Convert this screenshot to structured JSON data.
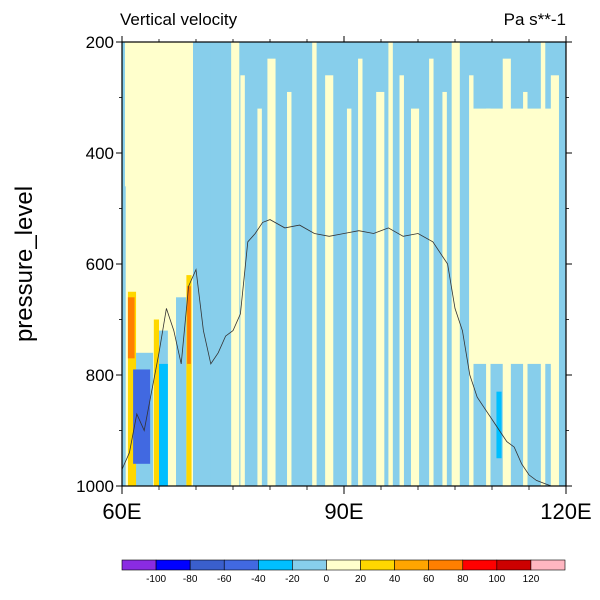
{
  "chart_data": {
    "type": "heatmap",
    "title": "Vertical velocity",
    "units": "Pa s**-1",
    "ylabel": "pressure_level",
    "xlabel": "",
    "xlim": [
      60,
      120
    ],
    "ylim": [
      1000,
      200
    ],
    "x_ticks": [
      {
        "value": 60,
        "label": "60E"
      },
      {
        "value": 90,
        "label": "90E"
      },
      {
        "value": 120,
        "label": "120E"
      }
    ],
    "y_ticks": [
      {
        "value": 200,
        "label": "200"
      },
      {
        "value": 400,
        "label": "400"
      },
      {
        "value": 600,
        "label": "600"
      },
      {
        "value": 800,
        "label": "800"
      },
      {
        "value": 1000,
        "label": "1000"
      }
    ],
    "background_level": {
      "min": -20,
      "max": 0,
      "color": "#87ceeb"
    },
    "regions": [
      {
        "name": "west-positive-zone",
        "lon": [
          60.4,
          69.6
        ],
        "p": [
          200,
          1000
        ],
        "level": "0 to 20",
        "color": "#ffffcc"
      },
      {
        "name": "west-negative-strip-a",
        "lon": [
          60.2,
          60.5
        ],
        "p": [
          460,
          1000
        ],
        "level": "-20 to 0",
        "color": "#87ceeb"
      },
      {
        "name": "west-negative-strip-b",
        "lon": [
          61.4,
          64.2
        ],
        "p": [
          760,
          1000
        ],
        "level": "-20 to 0",
        "color": "#87ceeb"
      },
      {
        "name": "west-negative-strip-c",
        "lon": [
          64.8,
          66.2
        ],
        "p": [
          720,
          1000
        ],
        "level": "-20 to 0",
        "color": "#87ceeb"
      },
      {
        "name": "west-negative-strip-d",
        "lon": [
          67.3,
          68.7
        ],
        "p": [
          660,
          1000
        ],
        "level": "-20 to 0",
        "color": "#87ceeb"
      },
      {
        "name": "west-negative-strip-e",
        "lon": [
          69.6,
          72.0
        ],
        "p": [
          200,
          1000
        ],
        "level": "-20 to 0",
        "color": "#87ceeb"
      },
      {
        "name": "orange-core-a",
        "lon": [
          60.8,
          61.9
        ],
        "p": [
          650,
          1000
        ],
        "level": "20 to 40",
        "color": "#ffd700"
      },
      {
        "name": "orange-core-b",
        "lon": [
          64.3,
          65.0
        ],
        "p": [
          700,
          1000
        ],
        "level": "20 to 40",
        "color": "#ffd700"
      },
      {
        "name": "orange-core-c",
        "lon": [
          68.7,
          69.4
        ],
        "p": [
          620,
          1000
        ],
        "level": "20 to 40",
        "color": "#ffd700"
      },
      {
        "name": "red-core-a",
        "lon": [
          60.8,
          61.7
        ],
        "p": [
          660,
          770
        ],
        "level": "40 to 60",
        "color": "#ff7f00"
      },
      {
        "name": "red-core-b",
        "lon": [
          68.8,
          69.3
        ],
        "p": [
          640,
          780
        ],
        "level": "40 to 60",
        "color": "#ff7f00"
      },
      {
        "name": "deep-blue-core",
        "lon": [
          61.5,
          63.8
        ],
        "p": [
          790,
          960
        ],
        "level": "-60 to -40",
        "color": "#4169e1"
      },
      {
        "name": "blue-core",
        "lon": [
          65.0,
          66.2
        ],
        "p": [
          780,
          1000
        ],
        "level": "-40 to -20",
        "color": "#00bfff"
      },
      {
        "name": "mid-blue-core",
        "lon": [
          110.6,
          111.3
        ],
        "p": [
          830,
          950
        ],
        "level": "-40 to -20",
        "color": "#00bfff"
      },
      {
        "name": "east-positive-patch",
        "lon": [
          107.0,
          118.0
        ],
        "p": [
          320,
          780
        ],
        "level": "0 to 20",
        "color": "#ffffcc"
      }
    ],
    "positive_stripes_lon": [
      75.3,
      76.3,
      78.6,
      80.2,
      82.6,
      86.0,
      88.0,
      90.7,
      92.2,
      94.9,
      96.3,
      97.8,
      99.6,
      101.8,
      103.6,
      105.1,
      107.2,
      109.5,
      112.0,
      114.5,
      116.9,
      118.5
    ],
    "contour_line": {
      "name": "surface-pressure",
      "lon": [
        60,
        61,
        62,
        63,
        64,
        65,
        66,
        67,
        68,
        69,
        70,
        71,
        72,
        73,
        74,
        75,
        76,
        77,
        78,
        79,
        80,
        82,
        84,
        86,
        88,
        90,
        92,
        94,
        96,
        98,
        100,
        102,
        104,
        105,
        106,
        107,
        108,
        109,
        110,
        111,
        112,
        113,
        114,
        115,
        116,
        117,
        118,
        119,
        120
      ],
      "p": [
        970,
        940,
        870,
        900,
        830,
        760,
        680,
        720,
        780,
        640,
        610,
        720,
        780,
        760,
        730,
        720,
        690,
        560,
        545,
        525,
        520,
        535,
        530,
        545,
        550,
        545,
        540,
        545,
        535,
        550,
        545,
        560,
        600,
        680,
        720,
        800,
        840,
        860,
        880,
        900,
        920,
        930,
        960,
        980,
        990,
        995,
        1000,
        1000,
        1000
      ]
    },
    "colorbar": {
      "labels": [
        "-100",
        "-80",
        "-60",
        "-40",
        "-20",
        "0",
        "20",
        "40",
        "60",
        "80",
        "100",
        "120"
      ],
      "colors": [
        "#8a2be2",
        "#0000ff",
        "#3a5fcd",
        "#4169e1",
        "#00bfff",
        "#87ceeb",
        "#ffffcc",
        "#ffd700",
        "#ffa500",
        "#ff7f00",
        "#ff0000",
        "#cd0000",
        "#ffb6c1"
      ]
    }
  }
}
